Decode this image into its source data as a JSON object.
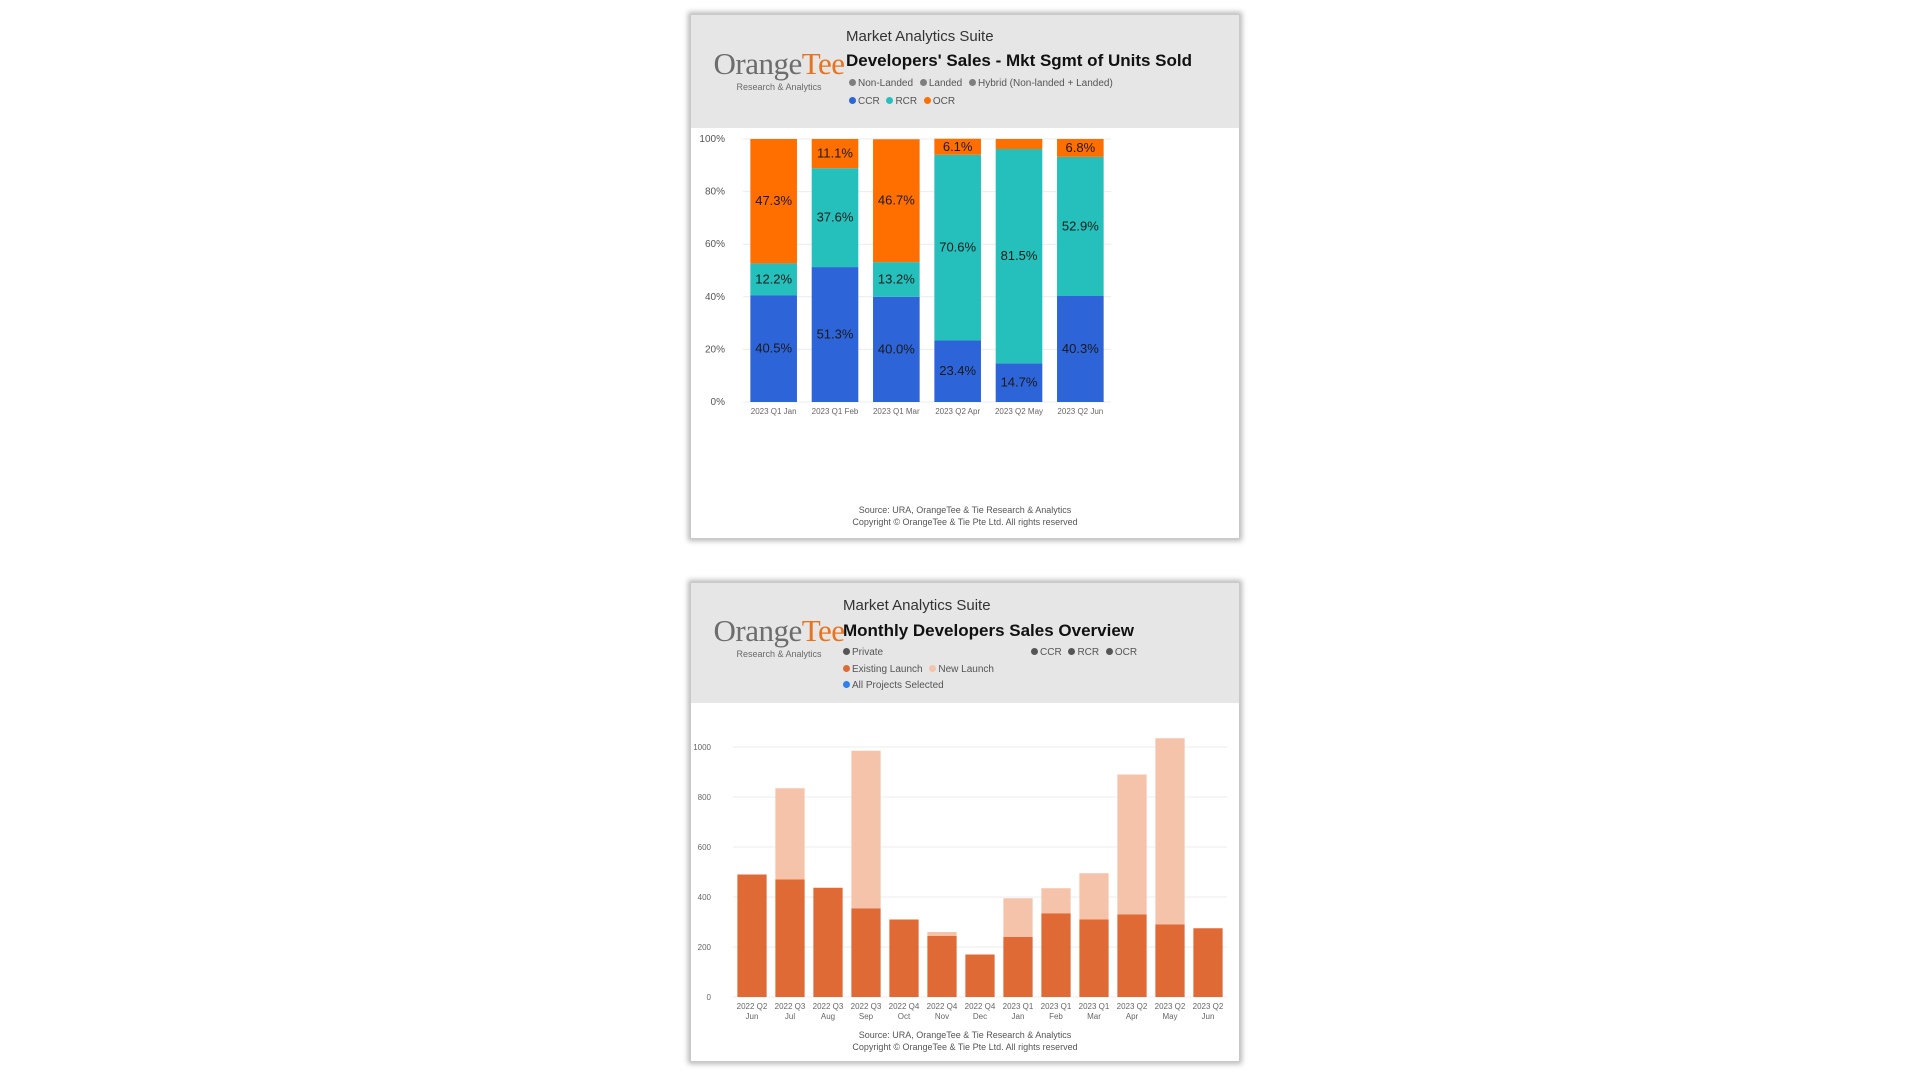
{
  "charts": [
    {
      "id": "card1",
      "suite_title": "Market Analytics Suite",
      "logo": {
        "part1": "Orange",
        "part2": "Tee",
        "subtitle": "Research & Analytics"
      },
      "legend_rows": [
        [
          {
            "label": "Non-Landed",
            "color": "#7f7f7f"
          },
          {
            "label": "Landed",
            "color": "#7f7f7f"
          },
          {
            "label": "Hybrid (Non-landed + Landed)",
            "color": "#7f7f7f"
          }
        ],
        [
          {
            "label": "CCR",
            "color": "#2d64d8"
          },
          {
            "label": "RCR",
            "color": "#25c0bb"
          },
          {
            "label": "OCR",
            "color": "#ff6f00"
          }
        ]
      ],
      "footer": {
        "source": "Source: URA, OrangeTee & Tie Research & Analytics",
        "copyright": "Copyright © OrangeTee & Tie Pte Ltd. All rights reserved"
      },
      "chart_data": {
        "type": "bar",
        "stacked": true,
        "title": "Developers' Sales - Mkt Sgmt of Units Sold",
        "xlabel": "",
        "ylabel": "",
        "ylim": [
          0,
          100
        ],
        "yticks": [
          "0%",
          "20%",
          "40%",
          "60%",
          "80%",
          "100%"
        ],
        "categories": [
          "2023 Q1 Jan",
          "2023 Q1 Feb",
          "2023 Q1 Mar",
          "2023 Q2 Apr",
          "2023 Q2 May",
          "2023 Q2 Jun"
        ],
        "series": [
          {
            "name": "CCR",
            "color": "#2d64d8",
            "values": [
              40.5,
              51.3,
              40.0,
              23.4,
              14.7,
              40.3
            ],
            "labels": [
              "40.5%",
              "51.3%",
              "40.0%",
              "23.4%",
              "14.7%",
              "40.3%"
            ]
          },
          {
            "name": "RCR",
            "color": "#25c0bb",
            "values": [
              12.2,
              37.6,
              13.2,
              70.6,
              81.5,
              52.9
            ],
            "labels": [
              "12.2%",
              "37.6%",
              "13.2%",
              "70.6%",
              "81.5%",
              "52.9%"
            ]
          },
          {
            "name": "OCR",
            "color": "#ff6f00",
            "values": [
              47.3,
              11.1,
              46.7,
              6.1,
              3.8,
              6.8
            ],
            "labels": [
              "47.3%",
              "11.1%",
              "46.7%",
              "6.1%",
              "",
              "6.8%"
            ]
          }
        ]
      }
    },
    {
      "id": "card2",
      "suite_title": "Market Analytics Suite",
      "logo": {
        "part1": "Orange",
        "part2": "Tee",
        "subtitle": "Research & Analytics"
      },
      "legend_rows": [
        [
          {
            "label": "Private",
            "color": "#555555"
          }
        ],
        [
          {
            "label": "Existing Launch",
            "color": "#e06a35"
          },
          {
            "label": "New Launch",
            "color": "#f5c3aa"
          }
        ],
        [
          {
            "label": "All Projects Selected",
            "color": "#2f80ed"
          }
        ]
      ],
      "legend_right": [
        {
          "label": "CCR",
          "color": "#555555"
        },
        {
          "label": "RCR",
          "color": "#555555"
        },
        {
          "label": "OCR",
          "color": "#555555"
        }
      ],
      "footer": {
        "source": "Source: URA, OrangeTee & Tie Research & Analytics",
        "copyright": "Copyright © OrangeTee & Tie Pte Ltd. All rights reserved"
      },
      "chart_data": {
        "type": "bar",
        "stacked": true,
        "title": "Monthly Developers Sales Overview",
        "xlabel": "",
        "ylabel": "",
        "ylim": [
          0,
          1000
        ],
        "yticks": [
          "0",
          "200",
          "400",
          "600",
          "800",
          "1000"
        ],
        "categories": [
          [
            "2022 Q2",
            "Jun"
          ],
          [
            "2022 Q3",
            "Jul"
          ],
          [
            "2022 Q3",
            "Aug"
          ],
          [
            "2022 Q3",
            "Sep"
          ],
          [
            "2022 Q4",
            "Oct"
          ],
          [
            "2022 Q4",
            "Nov"
          ],
          [
            "2022 Q4",
            "Dec"
          ],
          [
            "2023 Q1",
            "Jan"
          ],
          [
            "2023 Q1",
            "Feb"
          ],
          [
            "2023 Q1",
            "Mar"
          ],
          [
            "2023 Q2",
            "Apr"
          ],
          [
            "2023 Q2",
            "May"
          ],
          [
            "2023 Q2",
            "Jun"
          ]
        ],
        "series": [
          {
            "name": "Existing Launch",
            "color": "#e06a35",
            "values": [
              490,
              470,
              437,
              355,
              310,
              245,
              170,
              240,
              335,
              310,
              330,
              290,
              275
            ]
          },
          {
            "name": "New Launch",
            "color": "#f5c3aa",
            "values": [
              0,
              365,
              0,
              630,
              0,
              15,
              0,
              155,
              100,
              185,
              560,
              745,
              0
            ]
          }
        ]
      }
    }
  ]
}
